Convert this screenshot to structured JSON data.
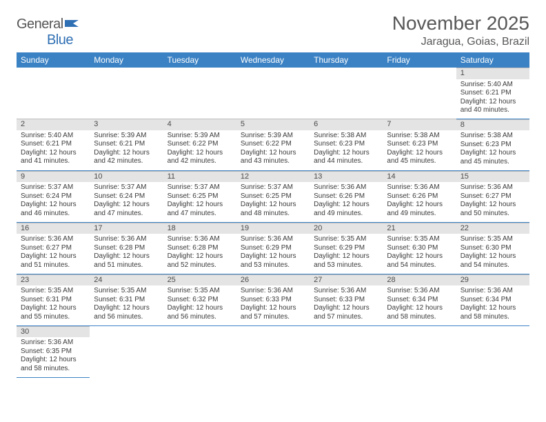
{
  "logo": {
    "word1": "General",
    "word2": "Blue"
  },
  "title": "November 2025",
  "location": "Jaragua, Goias, Brazil",
  "colors": {
    "header_bg": "#3b82c4",
    "header_text": "#ffffff",
    "daynum_bg": "#e4e4e4",
    "row_border": "#3b82c4",
    "text": "#3a3a3a",
    "title_text": "#575757"
  },
  "dayHeaders": [
    "Sunday",
    "Monday",
    "Tuesday",
    "Wednesday",
    "Thursday",
    "Friday",
    "Saturday"
  ],
  "weeks": [
    [
      null,
      null,
      null,
      null,
      null,
      null,
      {
        "n": "1",
        "sunrise": "5:40 AM",
        "sunset": "6:21 PM",
        "daylight": "12 hours and 40 minutes."
      }
    ],
    [
      {
        "n": "2",
        "sunrise": "5:40 AM",
        "sunset": "6:21 PM",
        "daylight": "12 hours and 41 minutes."
      },
      {
        "n": "3",
        "sunrise": "5:39 AM",
        "sunset": "6:21 PM",
        "daylight": "12 hours and 42 minutes."
      },
      {
        "n": "4",
        "sunrise": "5:39 AM",
        "sunset": "6:22 PM",
        "daylight": "12 hours and 42 minutes."
      },
      {
        "n": "5",
        "sunrise": "5:39 AM",
        "sunset": "6:22 PM",
        "daylight": "12 hours and 43 minutes."
      },
      {
        "n": "6",
        "sunrise": "5:38 AM",
        "sunset": "6:23 PM",
        "daylight": "12 hours and 44 minutes."
      },
      {
        "n": "7",
        "sunrise": "5:38 AM",
        "sunset": "6:23 PM",
        "daylight": "12 hours and 45 minutes."
      },
      {
        "n": "8",
        "sunrise": "5:38 AM",
        "sunset": "6:23 PM",
        "daylight": "12 hours and 45 minutes."
      }
    ],
    [
      {
        "n": "9",
        "sunrise": "5:37 AM",
        "sunset": "6:24 PM",
        "daylight": "12 hours and 46 minutes."
      },
      {
        "n": "10",
        "sunrise": "5:37 AM",
        "sunset": "6:24 PM",
        "daylight": "12 hours and 47 minutes."
      },
      {
        "n": "11",
        "sunrise": "5:37 AM",
        "sunset": "6:25 PM",
        "daylight": "12 hours and 47 minutes."
      },
      {
        "n": "12",
        "sunrise": "5:37 AM",
        "sunset": "6:25 PM",
        "daylight": "12 hours and 48 minutes."
      },
      {
        "n": "13",
        "sunrise": "5:36 AM",
        "sunset": "6:26 PM",
        "daylight": "12 hours and 49 minutes."
      },
      {
        "n": "14",
        "sunrise": "5:36 AM",
        "sunset": "6:26 PM",
        "daylight": "12 hours and 49 minutes."
      },
      {
        "n": "15",
        "sunrise": "5:36 AM",
        "sunset": "6:27 PM",
        "daylight": "12 hours and 50 minutes."
      }
    ],
    [
      {
        "n": "16",
        "sunrise": "5:36 AM",
        "sunset": "6:27 PM",
        "daylight": "12 hours and 51 minutes."
      },
      {
        "n": "17",
        "sunrise": "5:36 AM",
        "sunset": "6:28 PM",
        "daylight": "12 hours and 51 minutes."
      },
      {
        "n": "18",
        "sunrise": "5:36 AM",
        "sunset": "6:28 PM",
        "daylight": "12 hours and 52 minutes."
      },
      {
        "n": "19",
        "sunrise": "5:36 AM",
        "sunset": "6:29 PM",
        "daylight": "12 hours and 53 minutes."
      },
      {
        "n": "20",
        "sunrise": "5:35 AM",
        "sunset": "6:29 PM",
        "daylight": "12 hours and 53 minutes."
      },
      {
        "n": "21",
        "sunrise": "5:35 AM",
        "sunset": "6:30 PM",
        "daylight": "12 hours and 54 minutes."
      },
      {
        "n": "22",
        "sunrise": "5:35 AM",
        "sunset": "6:30 PM",
        "daylight": "12 hours and 54 minutes."
      }
    ],
    [
      {
        "n": "23",
        "sunrise": "5:35 AM",
        "sunset": "6:31 PM",
        "daylight": "12 hours and 55 minutes."
      },
      {
        "n": "24",
        "sunrise": "5:35 AM",
        "sunset": "6:31 PM",
        "daylight": "12 hours and 56 minutes."
      },
      {
        "n": "25",
        "sunrise": "5:35 AM",
        "sunset": "6:32 PM",
        "daylight": "12 hours and 56 minutes."
      },
      {
        "n": "26",
        "sunrise": "5:36 AM",
        "sunset": "6:33 PM",
        "daylight": "12 hours and 57 minutes."
      },
      {
        "n": "27",
        "sunrise": "5:36 AM",
        "sunset": "6:33 PM",
        "daylight": "12 hours and 57 minutes."
      },
      {
        "n": "28",
        "sunrise": "5:36 AM",
        "sunset": "6:34 PM",
        "daylight": "12 hours and 58 minutes."
      },
      {
        "n": "29",
        "sunrise": "5:36 AM",
        "sunset": "6:34 PM",
        "daylight": "12 hours and 58 minutes."
      }
    ],
    [
      {
        "n": "30",
        "sunrise": "5:36 AM",
        "sunset": "6:35 PM",
        "daylight": "12 hours and 58 minutes."
      },
      null,
      null,
      null,
      null,
      null,
      null
    ]
  ],
  "labels": {
    "sunrise": "Sunrise: ",
    "sunset": "Sunset: ",
    "daylight": "Daylight: "
  }
}
